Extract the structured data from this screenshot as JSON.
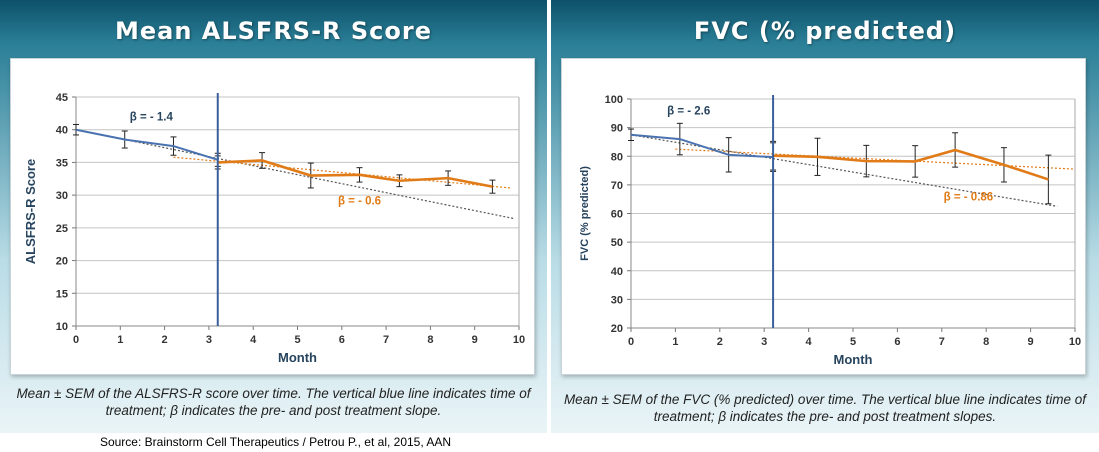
{
  "source": "Source: Brainstorm Cell Therapeutics / Petrou P., et al, 2015, AAN",
  "chart_data": [
    {
      "type": "line",
      "title": "Mean ALSFRS-R Score",
      "xlabel": "Month",
      "ylabel": "ALSFRS-R Score",
      "xlim": [
        0,
        10
      ],
      "ylim": [
        10,
        45
      ],
      "xticks": [
        0,
        1,
        2,
        3,
        4,
        5,
        6,
        7,
        8,
        9,
        10
      ],
      "yticks": [
        10,
        15,
        20,
        25,
        30,
        35,
        40,
        45
      ],
      "treatment_month": 3.2,
      "series": [
        {
          "name": "pre-treatment",
          "color": "#4a72b0",
          "x": [
            0,
            1.1,
            2.2,
            3.2
          ],
          "y": [
            40.0,
            38.5,
            37.5,
            35.4
          ],
          "sem": [
            0.8,
            1.3,
            1.4,
            1.0
          ]
        },
        {
          "name": "post-treatment",
          "color": "#e07b18",
          "x": [
            3.2,
            4.2,
            5.3,
            6.4,
            7.3,
            8.4,
            9.4
          ],
          "y": [
            35.0,
            35.3,
            33.0,
            33.1,
            32.2,
            32.6,
            31.3
          ],
          "sem": [
            1.0,
            1.2,
            1.9,
            1.1,
            0.9,
            1.1,
            1.0
          ]
        }
      ],
      "trendlines": [
        {
          "name": "pre slope extrapolated",
          "color": "#555555",
          "x": [
            0,
            9.9
          ],
          "y": [
            40.0,
            26.4
          ]
        },
        {
          "name": "post slope",
          "color": "#e07b18",
          "x": [
            2.2,
            9.8
          ],
          "y": [
            35.8,
            31.1
          ]
        }
      ],
      "annotations": [
        {
          "text": "β = - 1.4",
          "color": "#27445f",
          "x": 1.7,
          "y": 41.4
        },
        {
          "text": "β = - 0.6",
          "color": "#e07b18",
          "x": 6.4,
          "y": 28.6
        }
      ],
      "caption": "Mean ± SEM of the ALSFRS-R score over time. The vertical blue line indicates time of treatment; β indicates the pre- and post treatment slope."
    },
    {
      "type": "line",
      "title": "FVC (% predicted)",
      "xlabel": "Month",
      "ylabel": "FVC (% predicted)",
      "xlim": [
        0,
        10
      ],
      "ylim": [
        20,
        100
      ],
      "xticks": [
        0,
        1,
        2,
        3,
        4,
        5,
        6,
        7,
        8,
        9,
        10
      ],
      "yticks": [
        20,
        30,
        40,
        50,
        60,
        70,
        80,
        90,
        100
      ],
      "treatment_month": 3.2,
      "series": [
        {
          "name": "pre-treatment",
          "color": "#4a72b0",
          "x": [
            0,
            1.1,
            2.2,
            3.2
          ],
          "y": [
            87.5,
            86.0,
            80.5,
            79.7
          ],
          "sem": [
            2.0,
            5.5,
            6.0,
            5.0
          ]
        },
        {
          "name": "post-treatment",
          "color": "#e07b18",
          "x": [
            3.2,
            4.2,
            5.3,
            6.4,
            7.3,
            8.4,
            9.4
          ],
          "y": [
            80.2,
            79.8,
            78.3,
            78.2,
            82.2,
            77.0,
            71.9
          ],
          "sem": [
            5.0,
            6.5,
            5.5,
            5.5,
            6.0,
            6.0,
            8.5
          ]
        }
      ],
      "trendlines": [
        {
          "name": "pre slope extrapolated",
          "color": "#555555",
          "x": [
            0,
            9.6
          ],
          "y": [
            87.5,
            62.5
          ]
        },
        {
          "name": "post slope",
          "color": "#e07b18",
          "x": [
            1.0,
            10.0
          ],
          "y": [
            82.5,
            75.5
          ]
        }
      ],
      "annotations": [
        {
          "text": "β = - 2.6",
          "color": "#27445f",
          "x": 1.3,
          "y": 94.5
        },
        {
          "text": "β = - 0.86",
          "color": "#e07b18",
          "x": 7.6,
          "y": 64.5
        }
      ],
      "caption": "Mean ± SEM of the FVC (% predicted) over time. The vertical blue line indicates time of treatment; β indicates the pre- and post treatment slopes."
    }
  ]
}
